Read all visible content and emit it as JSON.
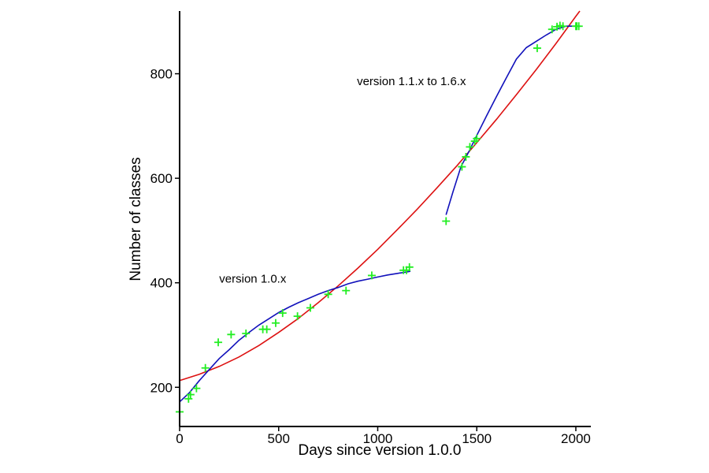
{
  "chart_data": {
    "type": "scatter",
    "xlabel": "Days since version 1.0.0",
    "ylabel": "Number of classes",
    "xlim": [
      0,
      2020
    ],
    "ylim": [
      125,
      920
    ],
    "xticks": [
      0,
      500,
      1000,
      1500,
      2000
    ],
    "yticks": [
      200,
      400,
      600,
      800
    ],
    "grid": false,
    "colors": {
      "points": "#22ee22",
      "red_fit": "#dd1111",
      "blue_fit": "#1111bb",
      "axis": "#000000"
    },
    "annotations": [
      {
        "text": "version 1.0.x",
        "x": 200,
        "y": 400
      },
      {
        "text": "version 1.1.x to 1.6.x",
        "x": 895,
        "y": 778
      }
    ],
    "series": [
      {
        "marker": "+",
        "color": "#22ee22",
        "points": [
          [
            0,
            153
          ],
          [
            45,
            178
          ],
          [
            55,
            186
          ],
          [
            85,
            198
          ],
          [
            130,
            237
          ],
          [
            195,
            286
          ],
          [
            260,
            301
          ],
          [
            335,
            303
          ],
          [
            420,
            311
          ],
          [
            440,
            311
          ],
          [
            485,
            323
          ],
          [
            520,
            342
          ],
          [
            595,
            336
          ],
          [
            660,
            352
          ],
          [
            750,
            378
          ],
          [
            840,
            385
          ],
          [
            970,
            414
          ],
          [
            1130,
            424
          ],
          [
            1145,
            424
          ],
          [
            1160,
            430
          ],
          [
            1345,
            518
          ],
          [
            1425,
            622
          ],
          [
            1445,
            641
          ],
          [
            1465,
            660
          ],
          [
            1490,
            671
          ],
          [
            1500,
            676
          ],
          [
            1805,
            849
          ],
          [
            1880,
            885
          ],
          [
            1905,
            890
          ],
          [
            1920,
            892
          ],
          [
            1935,
            891
          ],
          [
            2000,
            891
          ],
          [
            2005,
            891
          ],
          [
            2015,
            891
          ]
        ]
      },
      {
        "line": true,
        "color": "#dd1111",
        "points": [
          [
            0,
            213
          ],
          [
            100,
            225
          ],
          [
            200,
            240
          ],
          [
            300,
            258
          ],
          [
            400,
            280
          ],
          [
            500,
            305
          ],
          [
            600,
            332
          ],
          [
            700,
            362
          ],
          [
            800,
            394
          ],
          [
            900,
            428
          ],
          [
            1000,
            464
          ],
          [
            1100,
            502
          ],
          [
            1200,
            541
          ],
          [
            1300,
            582
          ],
          [
            1400,
            624
          ],
          [
            1500,
            668
          ],
          [
            1600,
            713
          ],
          [
            1700,
            760
          ],
          [
            1800,
            808
          ],
          [
            1900,
            858
          ],
          [
            2000,
            910
          ],
          [
            2020,
            920
          ]
        ]
      },
      {
        "line": true,
        "color": "#1111bb",
        "points": [
          [
            0,
            172
          ],
          [
            50,
            190
          ],
          [
            100,
            213
          ],
          [
            150,
            234
          ],
          [
            200,
            255
          ],
          [
            250,
            272
          ],
          [
            300,
            290
          ],
          [
            350,
            305
          ],
          [
            400,
            319
          ],
          [
            450,
            331
          ],
          [
            500,
            343
          ],
          [
            550,
            353
          ],
          [
            600,
            362
          ],
          [
            650,
            370
          ],
          [
            700,
            378
          ],
          [
            750,
            385
          ],
          [
            800,
            391
          ],
          [
            850,
            398
          ],
          [
            900,
            403
          ],
          [
            950,
            407
          ],
          [
            1000,
            411
          ],
          [
            1050,
            415
          ],
          [
            1100,
            418
          ],
          [
            1150,
            421
          ],
          [
            1165,
            422
          ]
        ]
      },
      {
        "line": true,
        "color": "#1111bb",
        "points": [
          [
            1345,
            530
          ],
          [
            1380,
            574
          ],
          [
            1420,
            622
          ],
          [
            1460,
            651
          ],
          [
            1500,
            682
          ],
          [
            1550,
            720
          ],
          [
            1600,
            757
          ],
          [
            1650,
            793
          ],
          [
            1700,
            828
          ],
          [
            1750,
            850
          ],
          [
            1800,
            862
          ],
          [
            1850,
            874
          ],
          [
            1900,
            885
          ],
          [
            1950,
            891
          ],
          [
            2000,
            891
          ],
          [
            2015,
            891
          ]
        ]
      }
    ]
  }
}
